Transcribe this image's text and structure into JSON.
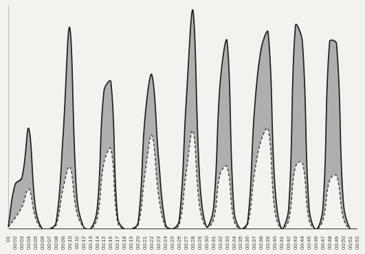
{
  "chart_data": {
    "type": "line",
    "categories": [
      "01",
      "00:02",
      "00:03",
      "00:04",
      "00:05",
      "00:06",
      "00:07",
      "00:08",
      "00:09",
      "00:10",
      "00:11",
      "00:12",
      "00:13",
      "00:14",
      "00:15",
      "00:16",
      "00:17",
      "00:18",
      "00:19",
      "00:20",
      "00:21",
      "00:22",
      "00:23",
      "00:24",
      "00:25",
      "00:26",
      "00:27",
      "00:28",
      "00:29",
      "00:30",
      "00:31",
      "00:32",
      "00:33",
      "00:34",
      "00:35",
      "00:36",
      "00:37",
      "00:38",
      "00:39",
      "00:40",
      "00:41",
      "00:42",
      "00:43",
      "00:44",
      "00:45",
      "00:46",
      "00:47",
      "00:48",
      "00:49",
      "00:50",
      "00:51",
      "00:52"
    ],
    "series": [
      {
        "color": "#222222",
        "line_style": "solid",
        "values": [
          1,
          20,
          23,
          45,
          9,
          0,
          0,
          3,
          41,
          90,
          16,
          1,
          0,
          9,
          62,
          66,
          5,
          0,
          0,
          3,
          50,
          69,
          31,
          2,
          0,
          4,
          56,
          98,
          22,
          1,
          9,
          66,
          84,
          9,
          0,
          3,
          53,
          81,
          88,
          19,
          0,
          9,
          91,
          84,
          9,
          0,
          9,
          84,
          83,
          12,
          0,
          0
        ]
      },
      {
        "color": "#333333",
        "line_style": "dashed",
        "values": [
          1,
          5,
          10,
          18,
          5,
          0,
          0,
          2,
          18,
          28,
          8,
          1,
          0,
          5,
          30,
          36,
          3,
          0,
          0,
          2,
          25,
          42,
          15,
          1,
          0,
          2,
          25,
          44,
          10,
          1,
          4,
          25,
          28,
          4,
          0,
          2,
          25,
          40,
          45,
          8,
          0,
          4,
          28,
          30,
          4,
          0,
          4,
          22,
          24,
          5,
          0,
          0
        ]
      }
    ],
    "ylim": [
      0,
      100
    ],
    "grid": false,
    "tick_labels": "x"
  }
}
